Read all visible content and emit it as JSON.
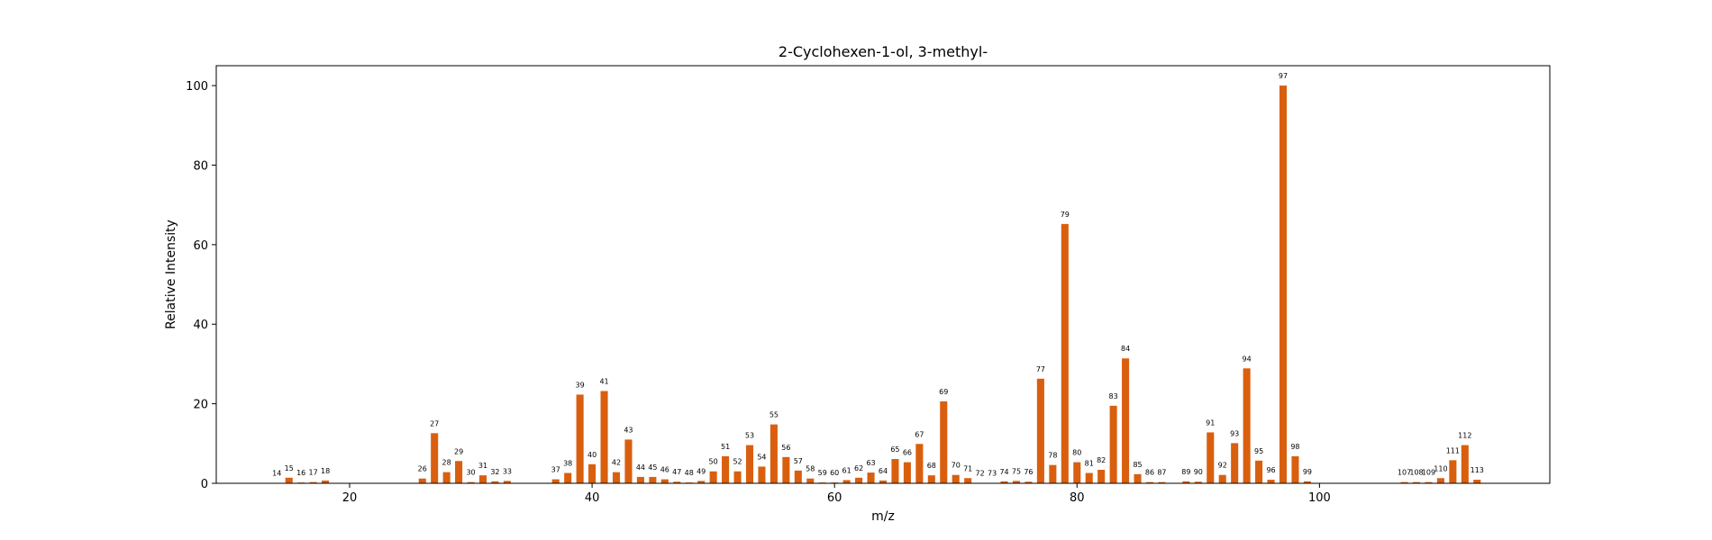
{
  "chart_data": {
    "type": "bar",
    "title": "2-Cyclohexen-1-ol, 3-methyl-",
    "xlabel": "m/z",
    "ylabel": "Relative Intensity",
    "xlim": [
      9,
      119
    ],
    "ylim": [
      0,
      105
    ],
    "xticks": [
      20,
      40,
      60,
      80,
      100
    ],
    "yticks": [
      0,
      20,
      40,
      60,
      80,
      100
    ],
    "bar_color": "#d95f0e",
    "grid": false,
    "x": [
      14,
      15,
      16,
      17,
      18,
      26,
      27,
      28,
      29,
      30,
      31,
      32,
      33,
      37,
      38,
      39,
      40,
      41,
      42,
      43,
      44,
      45,
      46,
      47,
      48,
      49,
      50,
      51,
      52,
      53,
      54,
      55,
      56,
      57,
      58,
      59,
      60,
      61,
      62,
      63,
      64,
      65,
      66,
      67,
      68,
      69,
      70,
      71,
      72,
      73,
      74,
      75,
      76,
      77,
      78,
      79,
      80,
      81,
      82,
      83,
      84,
      85,
      86,
      87,
      89,
      90,
      91,
      92,
      93,
      94,
      95,
      96,
      97,
      98,
      99,
      107,
      108,
      109,
      110,
      111,
      112,
      113
    ],
    "values": [
      0.1,
      1.4,
      0.2,
      0.3,
      0.7,
      1.2,
      12.6,
      2.8,
      5.6,
      0.3,
      2.0,
      0.5,
      0.6,
      1.0,
      2.6,
      22.3,
      4.8,
      23.2,
      2.8,
      11.0,
      1.6,
      1.6,
      1.0,
      0.4,
      0.2,
      0.6,
      3.0,
      6.8,
      3.0,
      9.6,
      4.2,
      14.8,
      6.6,
      3.2,
      1.2,
      0.2,
      0.2,
      0.8,
      1.4,
      2.7,
      0.7,
      6.1,
      5.3,
      9.9,
      2.0,
      20.6,
      2.1,
      1.3,
      0.1,
      0.1,
      0.5,
      0.6,
      0.4,
      26.3,
      4.6,
      65.2,
      5.3,
      2.6,
      3.4,
      19.5,
      31.4,
      2.3,
      0.3,
      0.3,
      0.5,
      0.4,
      12.8,
      2.1,
      10.1,
      28.9,
      5.7,
      0.9,
      100.0,
      6.8,
      0.5,
      0.3,
      0.3,
      0.3,
      1.3,
      5.8,
      9.6,
      0.9
    ],
    "labels": [
      "14",
      "15",
      "16",
      "17",
      "18",
      "26",
      "27",
      "28",
      "29",
      "30",
      "31",
      "32",
      "33",
      "37",
      "38",
      "39",
      "40",
      "41",
      "42",
      "43",
      "44",
      "45",
      "46",
      "47",
      "48",
      "49",
      "50",
      "51",
      "52",
      "53",
      "54",
      "55",
      "56",
      "57",
      "58",
      "59",
      "60",
      "61",
      "62",
      "63",
      "64",
      "65",
      "66",
      "67",
      "68",
      "69",
      "70",
      "71",
      "72",
      "73",
      "74",
      "75",
      "76",
      "77",
      "78",
      "79",
      "80",
      "81",
      "82",
      "83",
      "84",
      "85",
      "86",
      "87",
      "89",
      "90",
      "91",
      "92",
      "93",
      "94",
      "95",
      "96",
      "97",
      "98",
      "99",
      "107",
      "108",
      "109",
      "110",
      "111",
      "112",
      "113"
    ]
  }
}
